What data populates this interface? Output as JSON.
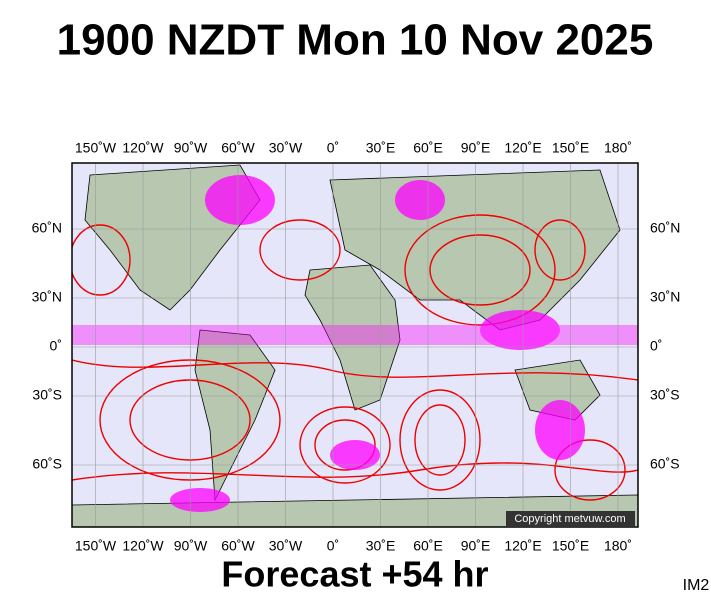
{
  "title": "1900 NZDT Mon 10 Nov 2025",
  "lon_labels": [
    "150˚W",
    "120˚W",
    "90˚W",
    "60˚W",
    "30˚W",
    "0˚",
    "30˚E",
    "60˚E",
    "90˚E",
    "120˚E",
    "150˚E",
    "180˚"
  ],
  "lat_labels": [
    "60˚N",
    "30˚N",
    "0˚",
    "30˚S",
    "60˚S"
  ],
  "copyright": "Copyright metvuw.com",
  "footer": "Forecast +54 hr",
  "corner": "IM2"
}
